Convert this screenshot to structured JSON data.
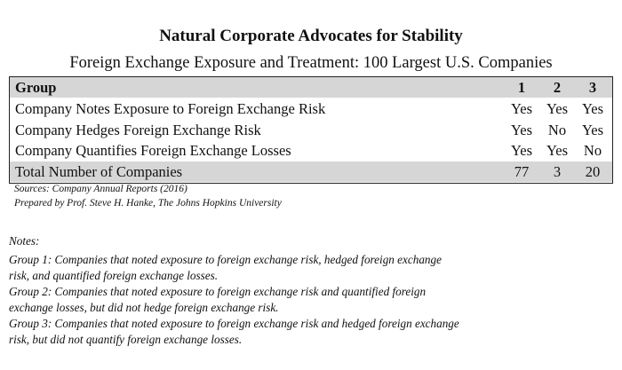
{
  "title": "Natural Corporate Advocates for Stability",
  "subtitle": "Foreign Exchange Exposure and Treatment: 100 Largest U.S. Companies",
  "table": {
    "header": [
      "Group",
      "1",
      "2",
      "3"
    ],
    "rows": [
      [
        "Company Notes Exposure to Foreign Exchange Risk",
        "Yes",
        "Yes",
        "Yes"
      ],
      [
        "Company Hedges Foreign Exchange Risk",
        "Yes",
        "No",
        "Yes"
      ],
      [
        "Company Quantifies Foreign Exchange Losses",
        "Yes",
        "Yes",
        "No"
      ]
    ],
    "total": [
      "Total Number of Companies",
      77,
      3,
      20
    ]
  },
  "sources": [
    "Sources: Company Annual Reports (2016)",
    "Prepared by Prof. Steve H. Hanke, The Johns Hopkins University"
  ],
  "notes": {
    "heading": "Notes:",
    "lines": [
      "Group 1: Companies that noted exposure to foreign exchange risk, hedged foreign exchange",
      "risk, and quantified foreign exchange losses.",
      "Group 2: Companies that noted exposure to foreign exchange risk and quantified foreign",
      "exchange losses, but did not hedge foreign exchange risk.",
      "Group 3: Companies that noted exposure to foreign exchange risk and hedged foreign exchange",
      "risk, but did not quantify foreign exchange losses."
    ]
  }
}
